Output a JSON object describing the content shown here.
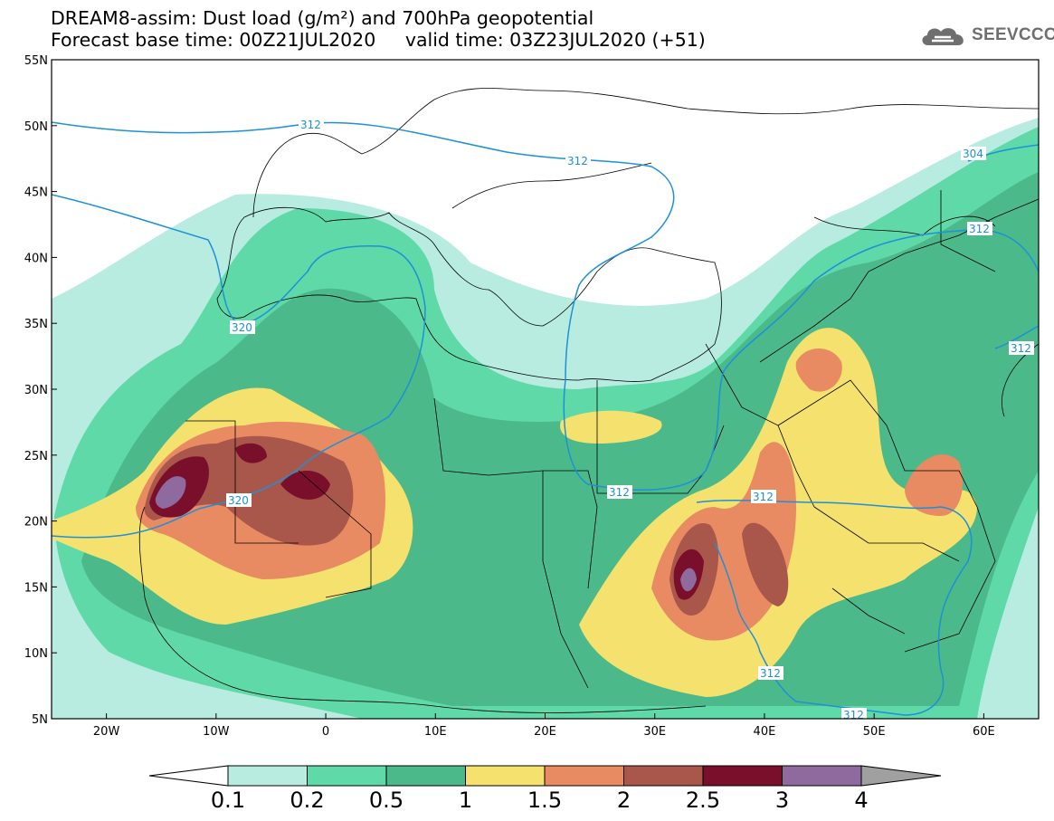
{
  "title": {
    "line1": "DREAM8-assim: Dust load (g/m²) and 700hPa geopotential",
    "line2": "Forecast base time: 00Z21JUL2020     valid time: 03Z23JUL2020 (+51)"
  },
  "logo": {
    "text": "SEEVCCC",
    "icon": "cloud-logo-icon"
  },
  "map": {
    "lat_ticks": [
      "55N",
      "50N",
      "45N",
      "40N",
      "35N",
      "30N",
      "25N",
      "20N",
      "15N",
      "10N",
      "5N"
    ],
    "lon_ticks": [
      "20W",
      "10W",
      "0",
      "10E",
      "20E",
      "30E",
      "40E",
      "50E",
      "60E"
    ],
    "extent": {
      "lon_min": -25,
      "lon_max": 65,
      "lat_min": 5,
      "lat_max": 55
    },
    "contour_color": "#1e90d8",
    "contour_labels": [
      "312",
      "312",
      "304",
      "312",
      "312",
      "320",
      "320",
      "312",
      "312",
      "312",
      "312"
    ]
  },
  "colorbar": {
    "levels": [
      "0.1",
      "0.2",
      "0.5",
      "1",
      "1.5",
      "2",
      "2.5",
      "3",
      "4"
    ],
    "colors": [
      "#ffffff",
      "#b8ece0",
      "#5fd9a8",
      "#4cb98a",
      "#f5e16e",
      "#e88a62",
      "#a9574a",
      "#7a0f2c",
      "#8f6a9e",
      "#a0a0a0"
    ]
  }
}
